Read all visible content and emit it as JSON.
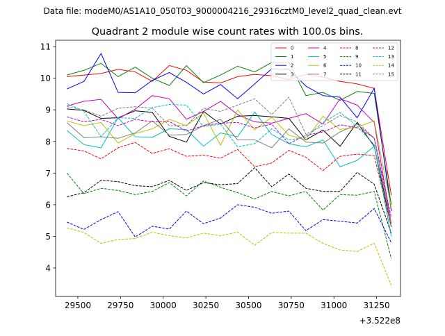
{
  "figure": {
    "suptitle": "Data file: modeM0/AS1A10_050T03_9000004216_29316cztM0_level2_quad_clean.evt"
  },
  "chart_data": {
    "type": "line",
    "title": "Quadrant 2 module wise count rates with 100.0s bins.",
    "xlabel": "",
    "ylabel": "",
    "x_offset_label": "+3.522e8",
    "xlim": [
      29370,
      31390
    ],
    "ylim": [
      3.1,
      11.2
    ],
    "x_ticks": [
      29500,
      29750,
      30000,
      30250,
      30500,
      30750,
      31000,
      31250
    ],
    "x_tick_labels": [
      "29500",
      "29750",
      "30000",
      "30250",
      "30500",
      "30750",
      "31000",
      "31250"
    ],
    "y_ticks": [
      4,
      5,
      6,
      7,
      8,
      9,
      10,
      11
    ],
    "y_tick_labels": [
      "4",
      "5",
      "6",
      "7",
      "8",
      "9",
      "10",
      "11"
    ],
    "grid": false,
    "legend_position": "top-right",
    "x": [
      29436,
      29536,
      29636,
      29736,
      29836,
      29936,
      30036,
      30136,
      30236,
      30336,
      30436,
      30536,
      30636,
      30736,
      30836,
      30936,
      31036,
      31136,
      31236,
      31336
    ],
    "series": [
      {
        "name": "0",
        "color": "#ff0000",
        "dash": "solid",
        "values": [
          10.05,
          10.1,
          10.15,
          10.28,
          10.2,
          9.9,
          10.4,
          10.25,
          9.88,
          9.85,
          10.05,
          10.12,
          10.08,
          9.96,
          10.12,
          10.03,
          9.9,
          9.82,
          9.68,
          6.3
        ]
      },
      {
        "name": "1",
        "color": "#008000",
        "dash": "solid",
        "values": [
          10.1,
          10.25,
          10.47,
          10.05,
          10.35,
          10.0,
          9.77,
          10.4,
          9.86,
          10.1,
          10.38,
          10.2,
          10.5,
          10.5,
          9.45,
          9.55,
          9.3,
          9.58,
          9.52,
          6.0
        ]
      },
      {
        "name": "2",
        "color": "#0000ff",
        "dash": "solid",
        "values": [
          9.66,
          9.9,
          10.78,
          9.55,
          9.54,
          9.93,
          10.18,
          9.87,
          9.5,
          9.8,
          9.35,
          9.82,
          10.3,
          10.28,
          9.75,
          9.45,
          9.4,
          8.75,
          9.68,
          5.8
        ]
      },
      {
        "name": "3",
        "color": "#000000",
        "dash": "solid",
        "values": [
          9.03,
          8.98,
          8.73,
          8.75,
          8.97,
          8.92,
          8.16,
          7.98,
          8.95,
          8.55,
          8.8,
          8.82,
          8.78,
          8.73,
          8.05,
          8.36,
          7.85,
          8.6,
          7.85,
          5.3
        ]
      },
      {
        "name": "4",
        "color": "#bf00bf",
        "dash": "solid",
        "values": [
          9.12,
          9.27,
          9.33,
          8.72,
          9.02,
          9.45,
          9.35,
          8.7,
          8.95,
          9.27,
          8.85,
          8.62,
          8.58,
          8.73,
          8.88,
          8.55,
          9.35,
          9.15,
          8.6,
          5.4
        ]
      },
      {
        "name": "5",
        "color": "#00bfbf",
        "dash": "solid",
        "values": [
          8.35,
          7.9,
          7.8,
          8.75,
          8.15,
          8.13,
          8.4,
          8.38,
          7.85,
          8.27,
          8.15,
          8.93,
          8.22,
          7.93,
          7.83,
          8.05,
          7.2,
          7.4,
          7.85,
          5.0
        ]
      },
      {
        "name": "6",
        "color": "#bfbf00",
        "dash": "solid",
        "values": [
          8.65,
          8.5,
          8.6,
          7.95,
          8.25,
          8.4,
          8.7,
          8.5,
          8.9,
          7.88,
          9.0,
          8.37,
          8.77,
          8.2,
          8.05,
          8.8,
          8.38,
          8.45,
          8.65,
          5.9
        ]
      },
      {
        "name": "7",
        "color": "#808080",
        "dash": "solid",
        "values": [
          8.6,
          8.12,
          8.15,
          8.1,
          8.27,
          8.65,
          8.2,
          8.22,
          8.5,
          8.7,
          8.05,
          8.05,
          7.8,
          8.4,
          7.98,
          7.95,
          8.3,
          8.55,
          8.1,
          5.4
        ]
      },
      {
        "name": "8",
        "color": "#ff0000",
        "dash": "dashed",
        "values": [
          7.78,
          7.7,
          7.45,
          7.8,
          7.97,
          7.62,
          7.77,
          7.53,
          7.57,
          7.47,
          7.75,
          7.2,
          7.32,
          7.72,
          7.5,
          7.08,
          7.53,
          7.6,
          7.55,
          5.3
        ]
      },
      {
        "name": "9",
        "color": "#008000",
        "dash": "dashed",
        "values": [
          7.0,
          6.35,
          6.52,
          6.45,
          6.32,
          6.42,
          6.7,
          6.28,
          6.75,
          6.55,
          6.38,
          6.18,
          6.42,
          6.28,
          6.42,
          5.83,
          6.32,
          6.3,
          6.42,
          4.3
        ]
      },
      {
        "name": "10",
        "color": "#0000ff",
        "dash": "dashed",
        "values": [
          5.45,
          5.22,
          5.53,
          5.78,
          4.98,
          5.32,
          5.23,
          5.8,
          5.4,
          5.58,
          6.0,
          5.92,
          5.73,
          5.8,
          5.18,
          5.53,
          5.48,
          5.42,
          5.88,
          4.8
        ]
      },
      {
        "name": "11",
        "color": "#000000",
        "dash": "dashed",
        "values": [
          6.25,
          6.38,
          6.77,
          6.73,
          6.6,
          6.57,
          6.77,
          6.45,
          6.7,
          6.63,
          6.67,
          7.17,
          6.57,
          6.97,
          6.52,
          6.42,
          6.42,
          7.02,
          6.65,
          5.1
        ]
      },
      {
        "name": "12",
        "color": "#bf00bf",
        "dash": "dashed",
        "values": [
          8.78,
          8.62,
          8.7,
          8.5,
          8.7,
          8.62,
          8.63,
          8.33,
          8.5,
          8.58,
          8.6,
          8.43,
          8.55,
          7.93,
          8.2,
          8.3,
          8.53,
          8.43,
          8.12,
          5.6
        ]
      },
      {
        "name": "13",
        "color": "#00bfbf",
        "dash": "dashed",
        "values": [
          9.2,
          8.95,
          8.15,
          8.75,
          8.73,
          9.07,
          9.17,
          9.15,
          8.47,
          8.55,
          7.83,
          7.93,
          8.4,
          8.05,
          8.13,
          8.6,
          8.92,
          8.48,
          7.9,
          5.0
        ]
      },
      {
        "name": "14",
        "color": "#bfbf00",
        "dash": "dashed",
        "values": [
          5.27,
          5.12,
          4.78,
          4.9,
          4.93,
          5.13,
          5.02,
          4.95,
          5.1,
          5.02,
          5.13,
          4.72,
          5.12,
          5.1,
          5.1,
          4.78,
          4.57,
          4.52,
          4.78,
          3.45
        ]
      },
      {
        "name": "15",
        "color": "#808080",
        "dash": "dashed",
        "values": [
          9.1,
          9.0,
          8.8,
          9.05,
          9.1,
          9.05,
          8.5,
          8.5,
          9.05,
          8.95,
          9.15,
          9.35,
          8.85,
          9.4,
          8.23,
          8.5,
          8.82,
          8.62,
          8.1,
          5.3
        ]
      }
    ]
  }
}
